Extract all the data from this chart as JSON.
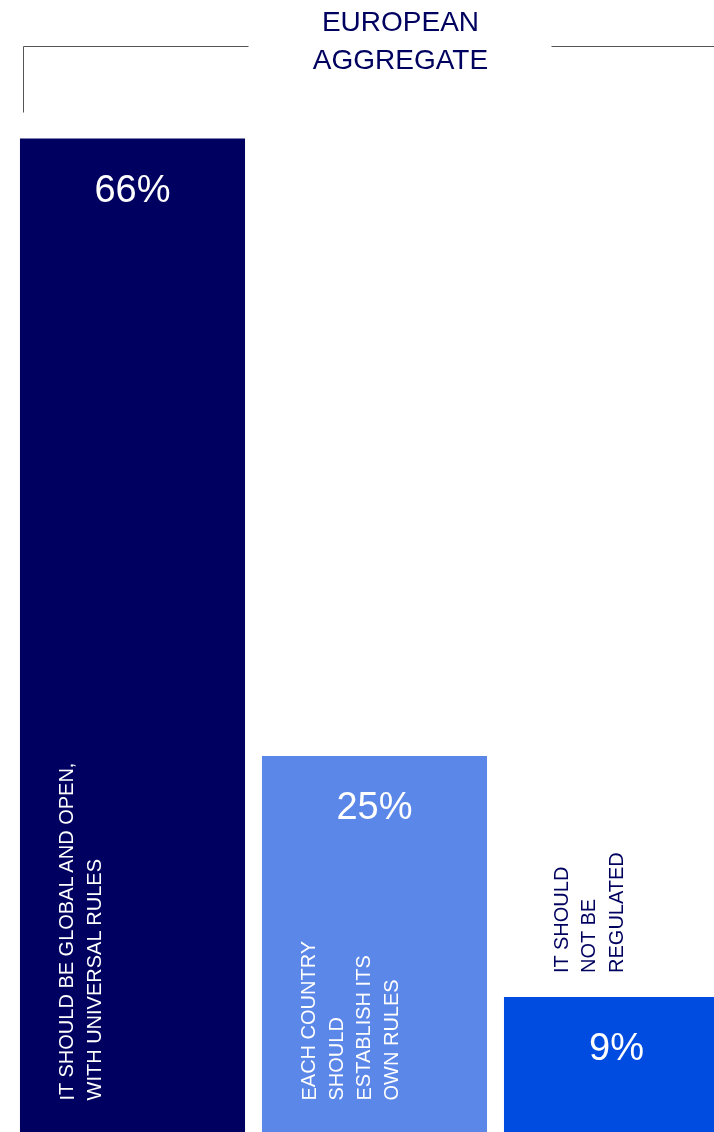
{
  "chart_data": {
    "type": "bar",
    "title": "EUROPEAN AGGREGATE",
    "categories": [
      "IT SHOULD BE GLOBAL AND OPEN, WITH UNIVERSAL RULES",
      "EACH COUNTRY SHOULD ESTABLISH ITS OWN RULES",
      "IT SHOULD NOT BE REGULATED"
    ],
    "values": [
      66,
      25,
      9
    ],
    "colors": [
      "#000060",
      "#5b87e8",
      "#004ce0"
    ],
    "value_labels": [
      "66%",
      "25%",
      "9%"
    ],
    "grid": false
  }
}
